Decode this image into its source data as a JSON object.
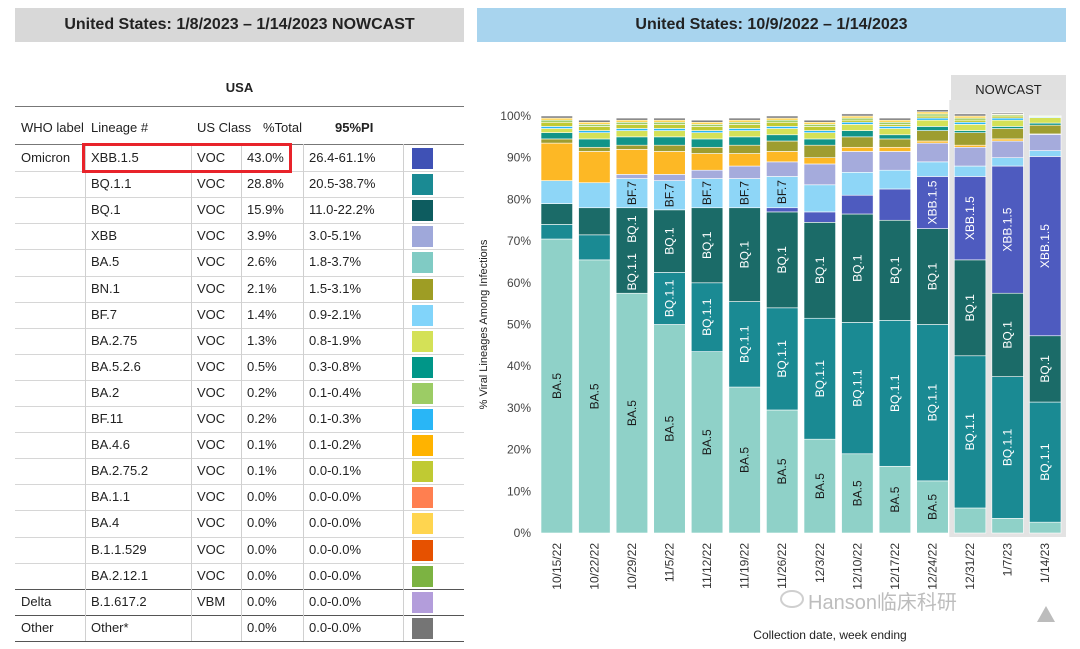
{
  "left_header": "United States: 1/8/2023 – 1/14/2023 NOWCAST",
  "right_header": "United States: 10/9/2022 – 1/14/2023",
  "table_title": "USA",
  "nowcast_button": "NOWCAST",
  "table": {
    "columns": [
      "WHO label",
      "Lineage #",
      "US Class",
      "%Total",
      "95%PI"
    ],
    "rows": [
      {
        "who": "Omicron",
        "lineage": "XBB.1.5",
        "cls": "VOC",
        "pct": "43.0%",
        "pi": "26.4-61.1%",
        "color": "#3f51b5"
      },
      {
        "who": "",
        "lineage": "BQ.1.1",
        "cls": "VOC",
        "pct": "28.8%",
        "pi": "20.5-38.7%",
        "color": "#1a8a93"
      },
      {
        "who": "",
        "lineage": "BQ.1",
        "cls": "VOC",
        "pct": "15.9%",
        "pi": "11.0-22.2%",
        "color": "#0d5c5f"
      },
      {
        "who": "",
        "lineage": "XBB",
        "cls": "VOC",
        "pct": "3.9%",
        "pi": "3.0-5.1%",
        "color": "#9fa8da"
      },
      {
        "who": "",
        "lineage": "BA.5",
        "cls": "VOC",
        "pct": "2.6%",
        "pi": "1.8-3.7%",
        "color": "#80cbc4"
      },
      {
        "who": "",
        "lineage": "BN.1",
        "cls": "VOC",
        "pct": "2.1%",
        "pi": "1.5-3.1%",
        "color": "#9e9d24"
      },
      {
        "who": "",
        "lineage": "BF.7",
        "cls": "VOC",
        "pct": "1.4%",
        "pi": "0.9-2.1%",
        "color": "#81d4fa"
      },
      {
        "who": "",
        "lineage": "BA.2.75",
        "cls": "VOC",
        "pct": "1.3%",
        "pi": "0.8-1.9%",
        "color": "#d4e157"
      },
      {
        "who": "",
        "lineage": "BA.5.2.6",
        "cls": "VOC",
        "pct": "0.5%",
        "pi": "0.3-0.8%",
        "color": "#009688"
      },
      {
        "who": "",
        "lineage": "BA.2",
        "cls": "VOC",
        "pct": "0.2%",
        "pi": "0.1-0.4%",
        "color": "#9ccc65"
      },
      {
        "who": "",
        "lineage": "BF.11",
        "cls": "VOC",
        "pct": "0.2%",
        "pi": "0.1-0.3%",
        "color": "#29b6f6"
      },
      {
        "who": "",
        "lineage": "BA.4.6",
        "cls": "VOC",
        "pct": "0.1%",
        "pi": "0.1-0.2%",
        "color": "#ffb300"
      },
      {
        "who": "",
        "lineage": "BA.2.75.2",
        "cls": "VOC",
        "pct": "0.1%",
        "pi": "0.0-0.1%",
        "color": "#c0ca33"
      },
      {
        "who": "",
        "lineage": "BA.1.1",
        "cls": "VOC",
        "pct": "0.0%",
        "pi": "0.0-0.0%",
        "color": "#ff7f50"
      },
      {
        "who": "",
        "lineage": "BA.4",
        "cls": "VOC",
        "pct": "0.0%",
        "pi": "0.0-0.0%",
        "color": "#ffd54f"
      },
      {
        "who": "",
        "lineage": "B.1.1.529",
        "cls": "VOC",
        "pct": "0.0%",
        "pi": "0.0-0.0%",
        "color": "#e65100"
      },
      {
        "who": "",
        "lineage": "BA.2.12.1",
        "cls": "VOC",
        "pct": "0.0%",
        "pi": "0.0-0.0%",
        "color": "#7cb342"
      },
      {
        "who": "Delta",
        "lineage": "B.1.617.2",
        "cls": "VBM",
        "pct": "0.0%",
        "pi": "0.0-0.0%",
        "color": "#b39ddb"
      },
      {
        "who": "Other",
        "lineage": "Other*",
        "cls": "",
        "pct": "0.0%",
        "pi": "0.0-0.0%",
        "color": "#757575"
      }
    ]
  },
  "watermark": "Hanson临床科研",
  "chart_data": {
    "type": "bar",
    "stacked": true,
    "ylabel": "% Viral Lineages Among Infections",
    "xlabel": "Collection date, week ending",
    "ylim": [
      0,
      100
    ],
    "y_ticks": [
      "0%",
      "10%",
      "20%",
      "30%",
      "40%",
      "50%",
      "60%",
      "70%",
      "80%",
      "90%",
      "100%"
    ],
    "categories": [
      "10/15/22",
      "10/22/22",
      "10/29/22",
      "11/5/22",
      "11/12/22",
      "11/19/22",
      "11/26/22",
      "12/3/22",
      "12/10/22",
      "12/17/22",
      "12/24/22",
      "12/31/22",
      "1/7/23",
      "1/14/23"
    ],
    "nowcast_from_index": 11,
    "series": [
      {
        "name": "BA.5",
        "color": "#8fd1c8",
        "values": [
          70.5,
          65.5,
          57.5,
          50,
          43.5,
          35,
          29.5,
          22.5,
          19,
          16,
          12.5,
          6,
          3.5,
          2.6
        ]
      },
      {
        "name": "BQ.1.1",
        "color": "#1a8a93",
        "values": [
          3.5,
          6,
          0,
          12.5,
          16.5,
          20.5,
          24.5,
          29,
          31.5,
          35,
          37.5,
          36.5,
          34,
          28.8
        ]
      },
      {
        "name": "BQ.1",
        "color": "#1b6b68",
        "values": [
          5,
          6.5,
          20.5,
          15,
          18,
          22.5,
          23,
          23,
          26,
          24,
          23,
          23,
          20,
          15.9
        ]
      },
      {
        "name": "XBB.1.5",
        "color": "#4e5bbf",
        "values": [
          0,
          0,
          0,
          0,
          0,
          0,
          1,
          2.5,
          4.5,
          7.5,
          12.5,
          20,
          30.5,
          43
        ]
      },
      {
        "name": "BF.7",
        "color": "#8ed6f7",
        "values": [
          5.5,
          6,
          7,
          7,
          7,
          7,
          7.5,
          6.5,
          5.5,
          4.5,
          3.5,
          2.5,
          2,
          1.4
        ]
      },
      {
        "name": "XBB",
        "color": "#a5abdc",
        "values": [
          0,
          0,
          1,
          1.5,
          2,
          3,
          3.5,
          5,
          5,
          4.5,
          4.5,
          4.5,
          4,
          3.9
        ]
      },
      {
        "name": "BA.4.6",
        "color": "#fdb825",
        "values": [
          9,
          7.5,
          6,
          5.5,
          4,
          3,
          2.5,
          1.5,
          1,
          1,
          0.5,
          0.5,
          0.5,
          0.1
        ]
      },
      {
        "name": "BN.1",
        "color": "#9e9d30",
        "values": [
          1,
          1,
          1,
          1.5,
          1.5,
          2,
          2.5,
          3,
          2.5,
          2,
          2.5,
          3,
          2.5,
          2.1
        ]
      },
      {
        "name": "BA.5.2.6",
        "color": "#119488",
        "values": [
          1.5,
          2,
          2,
          2,
          2,
          2,
          1.5,
          1.5,
          1.5,
          1,
          1,
          0.5,
          0.5,
          0.5
        ]
      },
      {
        "name": "BA.2.75",
        "color": "#d4e157",
        "values": [
          1,
          1.5,
          1.5,
          1.5,
          1.5,
          1.5,
          1.5,
          1.5,
          1.5,
          1.5,
          1.5,
          1.5,
          1.5,
          1.3
        ]
      },
      {
        "name": "BF.11",
        "color": "#29b6f6",
        "values": [
          0.5,
          0.5,
          0.5,
          0.5,
          0.5,
          0.5,
          0.5,
          0.5,
          0.5,
          0.5,
          0.5,
          0.5,
          0.5,
          0.2
        ]
      },
      {
        "name": "BA.2.75.2",
        "color": "#c0ca33",
        "values": [
          1,
          1,
          1,
          1,
          1,
          1,
          1,
          1,
          0.5,
          0.5,
          0.5,
          0.5,
          0.5,
          0.1
        ]
      },
      {
        "name": "BA.2",
        "color": "#9ccc65",
        "values": [
          0.5,
          0.5,
          0.5,
          0.5,
          0.5,
          0.5,
          0.5,
          0.5,
          0.5,
          0.5,
          0.5,
          0.5,
          0.3,
          0.2
        ]
      },
      {
        "name": "BA.4",
        "color": "#ffd54f",
        "values": [
          0.5,
          0.5,
          0.5,
          0.5,
          0.5,
          0.5,
          0.5,
          0.5,
          0.5,
          0.5,
          0.5,
          0.5,
          0.2,
          0.0
        ]
      },
      {
        "name": "Other",
        "color": "#7a7a7a",
        "values": [
          0.5,
          0.5,
          0.5,
          0.5,
          0.5,
          0.5,
          0.5,
          0.5,
          0.5,
          0.5,
          0.5,
          0.5,
          0.3,
          0.0
        ]
      }
    ],
    "bar_labels": [
      {
        "bar": 0,
        "series": "BA.5",
        "text": "BA.5"
      },
      {
        "bar": 1,
        "series": "BA.5",
        "text": "BA.5"
      },
      {
        "bar": 2,
        "series": "BA.5",
        "text": "BA.5"
      },
      {
        "bar": 2,
        "series": "BQ.1",
        "text": "BQ.1.1"
      },
      {
        "bar": 2,
        "series": "BQ.1",
        "text": "BQ.1"
      },
      {
        "bar": 2,
        "series": "BF.7",
        "text": "BF.7"
      },
      {
        "bar": 3,
        "series": "BA.5",
        "text": "BA.5"
      },
      {
        "bar": 3,
        "series": "BQ.1.1",
        "text": "BQ.1.1"
      },
      {
        "bar": 3,
        "series": "BQ.1",
        "text": "BQ.1"
      },
      {
        "bar": 3,
        "series": "BF.7",
        "text": "BF.7"
      },
      {
        "bar": 4,
        "series": "BA.5",
        "text": "BA.5"
      },
      {
        "bar": 4,
        "series": "BQ.1.1",
        "text": "BQ.1.1"
      },
      {
        "bar": 4,
        "series": "BQ.1",
        "text": "BQ.1"
      },
      {
        "bar": 4,
        "series": "BF.7",
        "text": "BF.7"
      },
      {
        "bar": 5,
        "series": "BA.5",
        "text": "BA.5"
      },
      {
        "bar": 5,
        "series": "BQ.1.1",
        "text": "BQ.1.1"
      },
      {
        "bar": 5,
        "series": "BQ.1",
        "text": "BQ.1"
      },
      {
        "bar": 5,
        "series": "BF.7",
        "text": "BF.7"
      },
      {
        "bar": 6,
        "series": "BA.5",
        "text": "BA.5"
      },
      {
        "bar": 6,
        "series": "BQ.1.1",
        "text": "BQ.1.1"
      },
      {
        "bar": 6,
        "series": "BQ.1",
        "text": "BQ.1"
      },
      {
        "bar": 6,
        "series": "BF.7",
        "text": "BF.7"
      },
      {
        "bar": 7,
        "series": "BA.5",
        "text": "BA.5"
      },
      {
        "bar": 7,
        "series": "BQ.1.1",
        "text": "BQ.1.1"
      },
      {
        "bar": 7,
        "series": "BQ.1",
        "text": "BQ.1"
      },
      {
        "bar": 8,
        "series": "BA.5",
        "text": "BA.5"
      },
      {
        "bar": 8,
        "series": "BQ.1.1",
        "text": "BQ.1.1"
      },
      {
        "bar": 8,
        "series": "BQ.1",
        "text": "BQ.1"
      },
      {
        "bar": 9,
        "series": "BA.5",
        "text": "BA.5"
      },
      {
        "bar": 9,
        "series": "BQ.1.1",
        "text": "BQ.1.1"
      },
      {
        "bar": 9,
        "series": "BQ.1",
        "text": "BQ.1"
      },
      {
        "bar": 10,
        "series": "BA.5",
        "text": "BA.5"
      },
      {
        "bar": 10,
        "series": "BQ.1.1",
        "text": "BQ.1.1"
      },
      {
        "bar": 10,
        "series": "BQ.1",
        "text": "BQ.1"
      },
      {
        "bar": 10,
        "series": "XBB.1.5",
        "text": "XBB.1.5"
      },
      {
        "bar": 11,
        "series": "BQ.1.1",
        "text": "BQ.1.1"
      },
      {
        "bar": 11,
        "series": "BQ.1",
        "text": "BQ.1"
      },
      {
        "bar": 11,
        "series": "XBB.1.5",
        "text": "XBB.1.5"
      },
      {
        "bar": 12,
        "series": "BQ.1.1",
        "text": "BQ.1.1"
      },
      {
        "bar": 12,
        "series": "BQ.1",
        "text": "BQ.1"
      },
      {
        "bar": 12,
        "series": "XBB.1.5",
        "text": "XBB.1.5"
      },
      {
        "bar": 13,
        "series": "BQ.1.1",
        "text": "BQ.1.1"
      },
      {
        "bar": 13,
        "series": "BQ.1",
        "text": "BQ.1"
      },
      {
        "bar": 13,
        "series": "XBB.1.5",
        "text": "XBB.1.5"
      }
    ]
  }
}
